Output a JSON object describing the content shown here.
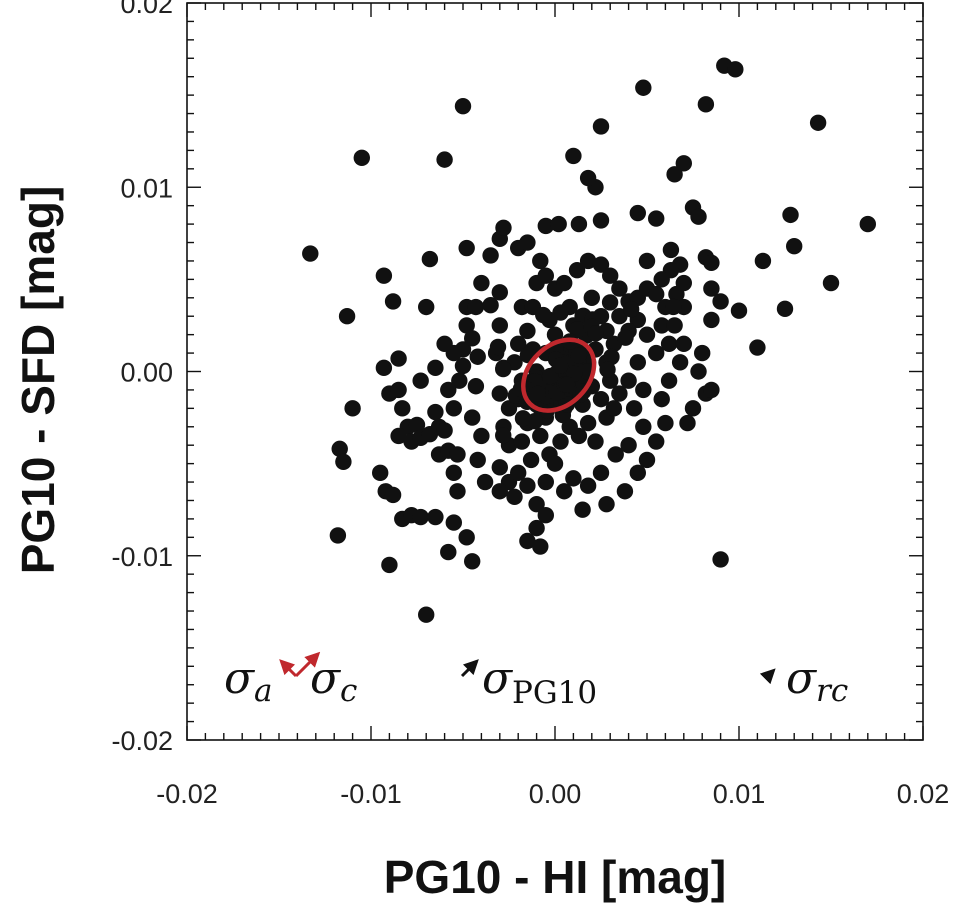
{
  "chart_data": {
    "type": "scatter",
    "title": "",
    "xlabel": "PG10 - HI [mag]",
    "ylabel": "PG10 - SFD [mag]",
    "xlim": [
      -0.02,
      0.02
    ],
    "ylim": [
      -0.02,
      0.02
    ],
    "x_ticks": [
      -0.02,
      -0.01,
      0.0,
      0.01,
      0.02
    ],
    "x_tick_labels": [
      "-0.02",
      "-0.01",
      "0.00",
      "0.01",
      "0.02"
    ],
    "y_ticks": [
      -0.02,
      -0.01,
      0.0,
      0.01,
      0.02
    ],
    "y_tick_labels": [
      "-0.02",
      "-0.01",
      "0.00",
      "0.01",
      "0.02"
    ],
    "grid": false,
    "marker_color": "#111111",
    "ellipse_color": "#c0282d",
    "vector_color": "#111111",
    "ellipse": {
      "center": [
        0.0002,
        -0.0002
      ],
      "semi_major": 0.0022,
      "semi_minor": 0.0016,
      "angle_deg": 45
    },
    "points": [
      [
        -0.0133,
        0.0064
      ],
      [
        -0.0113,
        0.003
      ],
      [
        -0.011,
        -0.002
      ],
      [
        -0.0117,
        -0.0042
      ],
      [
        -0.0115,
        -0.0049
      ],
      [
        -0.0118,
        -0.0089
      ],
      [
        -0.0105,
        0.0116
      ],
      [
        -0.0095,
        -0.0055
      ],
      [
        -0.0092,
        -0.0065
      ],
      [
        -0.0088,
        -0.0067
      ],
      [
        -0.009,
        -0.0105
      ],
      [
        -0.0093,
        0.0052
      ],
      [
        -0.0088,
        0.0038
      ],
      [
        -0.0085,
        0.0007
      ],
      [
        -0.0093,
        0.0002
      ],
      [
        -0.009,
        -0.0012
      ],
      [
        -0.0085,
        -0.001
      ],
      [
        -0.0083,
        -0.002
      ],
      [
        -0.008,
        -0.003
      ],
      [
        -0.0085,
        -0.0035
      ],
      [
        -0.0078,
        -0.0038
      ],
      [
        -0.0083,
        -0.008
      ],
      [
        -0.0078,
        -0.0078
      ],
      [
        -0.0073,
        -0.0079
      ],
      [
        -0.0065,
        -0.0079
      ],
      [
        -0.0075,
        -0.0029
      ],
      [
        -0.0073,
        -0.0036
      ],
      [
        -0.0068,
        -0.0034
      ],
      [
        -0.007,
        -0.0132
      ],
      [
        -0.0068,
        0.0061
      ],
      [
        -0.007,
        0.0035
      ],
      [
        -0.0073,
        -0.0005
      ],
      [
        -0.0065,
        -0.0022
      ],
      [
        -0.0065,
        0.0002
      ],
      [
        -0.0063,
        -0.003
      ],
      [
        -0.0063,
        -0.0045
      ],
      [
        -0.0058,
        -0.0043
      ],
      [
        -0.0053,
        -0.0045
      ],
      [
        -0.0055,
        -0.0055
      ],
      [
        -0.0053,
        -0.0065
      ],
      [
        -0.0055,
        -0.0082
      ],
      [
        -0.0058,
        -0.0098
      ],
      [
        -0.0048,
        -0.009
      ],
      [
        -0.0045,
        -0.0103
      ],
      [
        -0.006,
        -0.0032
      ],
      [
        -0.0058,
        -0.001
      ],
      [
        -0.0055,
        -0.002
      ],
      [
        -0.0052,
        -0.0005
      ],
      [
        -0.005,
        0.0003
      ],
      [
        -0.005,
        0.0012
      ],
      [
        -0.0055,
        0.001
      ],
      [
        -0.006,
        0.0015
      ],
      [
        -0.0048,
        0.0025
      ],
      [
        -0.0048,
        0.0035
      ],
      [
        -0.0043,
        0.0035
      ],
      [
        -0.0045,
        0.0018
      ],
      [
        -0.0042,
        0.0008
      ],
      [
        -0.0043,
        -0.0008
      ],
      [
        -0.0045,
        -0.0025
      ],
      [
        -0.004,
        -0.0035
      ],
      [
        -0.0042,
        -0.0048
      ],
      [
        -0.0038,
        -0.006
      ],
      [
        -0.004,
        0.0048
      ],
      [
        -0.0035,
        0.0063
      ],
      [
        -0.0048,
        0.0067
      ],
      [
        -0.003,
        0.0072
      ],
      [
        -0.0028,
        0.0078
      ],
      [
        -0.002,
        0.0067
      ],
      [
        -0.0015,
        0.007
      ],
      [
        -0.0005,
        0.0079
      ],
      [
        0.0002,
        0.008
      ],
      [
        0.0013,
        0.008
      ],
      [
        0.0025,
        0.0082
      ],
      [
        0.0022,
        0.01
      ],
      [
        0.0018,
        0.0105
      ],
      [
        0.001,
        0.0117
      ],
      [
        0.0025,
        0.0133
      ],
      [
        0.0048,
        0.0154
      ],
      [
        -0.006,
        0.0115
      ],
      [
        -0.005,
        0.0144
      ],
      [
        -0.0035,
        0.0036
      ],
      [
        -0.003,
        0.0043
      ],
      [
        -0.003,
        0.0025
      ],
      [
        -0.0032,
        0.001
      ],
      [
        -0.0028,
        0.0002
      ],
      [
        -0.003,
        -0.0012
      ],
      [
        -0.0025,
        -0.002
      ],
      [
        -0.0028,
        -0.003
      ],
      [
        -0.0025,
        -0.004
      ],
      [
        -0.003,
        -0.0052
      ],
      [
        -0.0025,
        -0.006
      ],
      [
        -0.003,
        -0.0065
      ],
      [
        -0.0022,
        -0.0068
      ],
      [
        -0.002,
        -0.0055
      ],
      [
        -0.0015,
        -0.0062
      ],
      [
        -0.0013,
        -0.0048
      ],
      [
        -0.0018,
        -0.0038
      ],
      [
        -0.0015,
        -0.0028
      ],
      [
        -0.002,
        -0.0015
      ],
      [
        -0.0018,
        -0.0005
      ],
      [
        -0.0022,
        0.0005
      ],
      [
        -0.002,
        0.0015
      ],
      [
        -0.0015,
        0.0022
      ],
      [
        -0.0018,
        0.0035
      ],
      [
        -0.0012,
        0.0035
      ],
      [
        -0.001,
        0.0048
      ],
      [
        -0.0008,
        0.006
      ],
      [
        -0.0005,
        0.0052
      ],
      [
        0.0,
        0.0045
      ],
      [
        0.0005,
        0.0048
      ],
      [
        0.0012,
        0.0055
      ],
      [
        0.0018,
        0.006
      ],
      [
        0.0025,
        0.0058
      ],
      [
        0.003,
        0.0052
      ],
      [
        0.0035,
        0.0045
      ],
      [
        0.004,
        0.0038
      ],
      [
        0.0045,
        0.004
      ],
      [
        0.005,
        0.0045
      ],
      [
        0.0055,
        0.0042
      ],
      [
        0.006,
        0.0035
      ],
      [
        0.0058,
        0.0025
      ],
      [
        0.0062,
        0.0015
      ],
      [
        0.0055,
        0.001
      ],
      [
        0.005,
        0.002
      ],
      [
        0.0045,
        0.0028
      ],
      [
        0.004,
        0.0022
      ],
      [
        0.0035,
        0.003
      ],
      [
        0.0032,
        0.0015
      ],
      [
        0.0028,
        0.0022
      ],
      [
        0.0025,
        0.003
      ],
      [
        0.002,
        0.004
      ],
      [
        0.0015,
        0.003
      ],
      [
        0.001,
        0.0025
      ],
      [
        0.0012,
        0.001
      ],
      [
        0.0018,
        0.0005
      ],
      [
        0.0022,
        0.0012
      ],
      [
        0.0028,
        0.0005
      ],
      [
        0.003,
        -0.0005
      ],
      [
        0.0025,
        -0.0015
      ],
      [
        0.002,
        -0.0008
      ],
      [
        0.0015,
        -0.0018
      ],
      [
        0.001,
        -0.0012
      ],
      [
        0.0005,
        -0.002
      ],
      [
        0.0,
        -0.0015
      ],
      [
        -0.0005,
        -0.0025
      ],
      [
        -0.001,
        -0.0018
      ],
      [
        -0.0008,
        -0.0035
      ],
      [
        -0.0003,
        -0.0045
      ],
      [
        0.0003,
        -0.0038
      ],
      [
        0.0008,
        -0.003
      ],
      [
        0.0013,
        -0.0035
      ],
      [
        0.0018,
        -0.0028
      ],
      [
        0.0022,
        -0.0038
      ],
      [
        0.0028,
        -0.0025
      ],
      [
        0.0032,
        -0.002
      ],
      [
        0.0035,
        -0.0012
      ],
      [
        0.004,
        -0.0005
      ],
      [
        0.0045,
        0.0005
      ],
      [
        0.0048,
        -0.001
      ],
      [
        0.0043,
        -0.002
      ],
      [
        0.0048,
        -0.003
      ],
      [
        0.004,
        -0.004
      ],
      [
        0.0033,
        -0.0045
      ],
      [
        0.0025,
        -0.0055
      ],
      [
        0.0018,
        -0.0062
      ],
      [
        0.001,
        -0.0058
      ],
      [
        0.0005,
        -0.0065
      ],
      [
        -0.0005,
        -0.006
      ],
      [
        -0.001,
        -0.0072
      ],
      [
        -0.0005,
        -0.0078
      ],
      [
        -0.001,
        -0.0085
      ],
      [
        -0.0015,
        -0.0092
      ],
      [
        -0.0008,
        -0.0095
      ],
      [
        0.0,
        -0.005
      ],
      [
        0.0005,
        -0.0008
      ],
      [
        -0.0003,
        -0.0005
      ],
      [
        0.0003,
        0.0005
      ],
      [
        0.0008,
        0.0015
      ],
      [
        -0.0005,
        0.001
      ],
      [
        -0.001,
        0.0
      ],
      [
        -0.0012,
        0.0012
      ],
      [
        0.0,
        0.002
      ],
      [
        0.0008,
        0.0035
      ],
      [
        0.0003,
        0.0032
      ],
      [
        -0.0003,
        0.0028
      ],
      [
        0.005,
        0.006
      ],
      [
        0.0045,
        0.0086
      ],
      [
        0.0055,
        0.0083
      ],
      [
        0.0063,
        0.0066
      ],
      [
        0.0065,
        0.0107
      ],
      [
        0.007,
        0.0113
      ],
      [
        0.0075,
        0.0089
      ],
      [
        0.0078,
        0.0084
      ],
      [
        0.0068,
        0.0058
      ],
      [
        0.007,
        0.0048
      ],
      [
        0.0063,
        0.0055
      ],
      [
        0.0058,
        0.005
      ],
      [
        0.0066,
        0.0042
      ],
      [
        0.007,
        0.0035
      ],
      [
        0.0065,
        0.0025
      ],
      [
        0.007,
        0.0015
      ],
      [
        0.0068,
        0.0005
      ],
      [
        0.0062,
        -0.0005
      ],
      [
        0.0058,
        -0.0015
      ],
      [
        0.006,
        -0.0028
      ],
      [
        0.0055,
        -0.0038
      ],
      [
        0.005,
        -0.0048
      ],
      [
        0.0045,
        -0.0055
      ],
      [
        0.0038,
        -0.0065
      ],
      [
        0.0028,
        -0.0072
      ],
      [
        0.0015,
        -0.0075
      ],
      [
        0.0082,
        0.0062
      ],
      [
        0.0085,
        0.0045
      ],
      [
        0.009,
        0.0038
      ],
      [
        0.0085,
        0.0028
      ],
      [
        0.008,
        0.001
      ],
      [
        0.0078,
        0.0
      ],
      [
        0.0082,
        -0.0012
      ],
      [
        0.0075,
        -0.002
      ],
      [
        0.0072,
        -0.0028
      ],
      [
        0.0085,
        -0.001
      ],
      [
        0.0082,
        0.0145
      ],
      [
        0.0092,
        0.0166
      ],
      [
        0.0098,
        0.0164
      ],
      [
        0.01,
        0.0033
      ],
      [
        0.009,
        -0.0102
      ],
      [
        0.011,
        0.0013
      ],
      [
        0.0113,
        0.006
      ],
      [
        0.0125,
        0.0034
      ],
      [
        0.0128,
        0.0085
      ],
      [
        0.013,
        0.0068
      ],
      [
        0.0143,
        0.0135
      ],
      [
        0.015,
        0.0048
      ],
      [
        0.017,
        0.008
      ],
      [
        0.0085,
        0.0059
      ]
    ],
    "cluster": {
      "center": [
        0.0002,
        -0.0002
      ],
      "spread": [
        0.0016,
        0.0014
      ],
      "count": 90,
      "seed": 7
    },
    "annotations": [
      {
        "symbol": "σ",
        "subscript": "a",
        "upright": false
      },
      {
        "symbol": "σ",
        "subscript": "c",
        "upright": false
      },
      {
        "symbol": "σ",
        "subscript": "PG10",
        "upright": true
      },
      {
        "symbol": "σ",
        "subscript": "rc",
        "upright": false
      }
    ],
    "vectors": {
      "sigma_a": [
        -0.0008,
        0.0008
      ],
      "sigma_c": [
        0.0012,
        0.0012
      ],
      "sigma_pg10": [
        0.0008,
        0.0008
      ],
      "sigma_rc": [
        0.0003,
        0.0003
      ]
    }
  }
}
